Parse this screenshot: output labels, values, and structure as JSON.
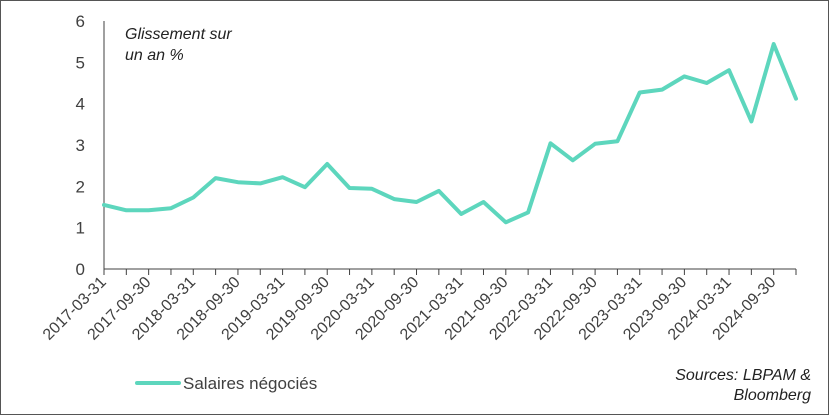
{
  "chart_data": {
    "type": "line",
    "annotation": [
      "Glissement sur",
      "un an %"
    ],
    "source": [
      "Sources: LBPAM &",
      "Bloomberg"
    ],
    "ylim": [
      0,
      6
    ],
    "yticks": [
      0,
      1,
      2,
      3,
      4,
      5,
      6
    ],
    "xtick_labels": [
      "2017-03-31",
      "2017-09-30",
      "2018-03-31",
      "2018-09-30",
      "2019-03-31",
      "2019-09-30",
      "2020-03-31",
      "2020-09-30",
      "2021-03-31",
      "2021-09-30",
      "2022-03-31",
      "2022-09-30",
      "2023-03-31",
      "2023-09-30",
      "2024-03-31",
      "2024-09-30"
    ],
    "x": [
      "2017-03-31",
      "2017-06-30",
      "2017-09-30",
      "2017-12-31",
      "2018-03-31",
      "2018-06-30",
      "2018-09-30",
      "2018-12-31",
      "2019-03-31",
      "2019-06-30",
      "2019-09-30",
      "2019-12-31",
      "2020-03-31",
      "2020-06-30",
      "2020-09-30",
      "2020-12-31",
      "2021-03-31",
      "2021-06-30",
      "2021-09-30",
      "2021-12-31",
      "2022-03-31",
      "2022-06-30",
      "2022-09-30",
      "2022-12-31",
      "2023-03-31",
      "2023-06-30",
      "2023-09-30",
      "2023-12-31",
      "2024-03-31",
      "2024-06-30",
      "2024-09-30",
      "2024-12-31"
    ],
    "series": [
      {
        "name": "Salaires négociés",
        "color": "#5dd6bd",
        "values": [
          1.55,
          1.42,
          1.42,
          1.47,
          1.73,
          2.2,
          2.1,
          2.07,
          2.22,
          1.98,
          2.54,
          1.96,
          1.94,
          1.69,
          1.62,
          1.89,
          1.33,
          1.62,
          1.13,
          1.37,
          3.04,
          2.63,
          3.03,
          3.09,
          4.27,
          4.34,
          4.66,
          4.5,
          4.81,
          3.57,
          5.44,
          4.12
        ]
      }
    ],
    "grid": false,
    "legend": "bottom-left"
  }
}
